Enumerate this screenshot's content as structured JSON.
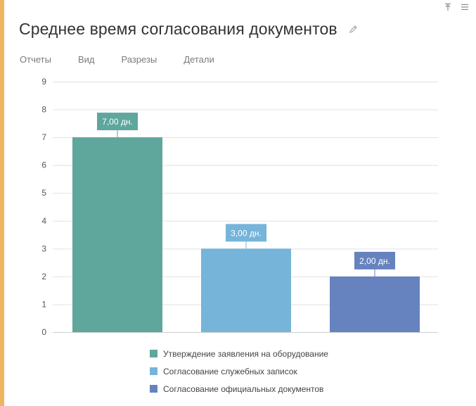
{
  "header": {
    "title": "Среднее время согласования документов",
    "pin_icon": "pin-icon",
    "menu_icon": "hamburger-menu-icon",
    "edit_icon": "pencil-icon"
  },
  "tabs": [
    {
      "label": "Отчеты"
    },
    {
      "label": "Вид"
    },
    {
      "label": "Разрезы"
    },
    {
      "label": "Детали"
    }
  ],
  "colors": {
    "accent": "#f0b460",
    "grid": "#e2e2e2",
    "axis_text": "#555555"
  },
  "chart_data": {
    "type": "bar",
    "title": "Среднее время согласования документов",
    "xlabel": "",
    "ylabel": "",
    "ylim": [
      0,
      9
    ],
    "yticks": [
      "0",
      "1",
      "2",
      "3",
      "4",
      "5",
      "6",
      "7",
      "8",
      "9"
    ],
    "grid": true,
    "legend_position": "bottom",
    "series": [
      {
        "name": "Утверждение заявления на оборудование",
        "value": 7,
        "label": "7,00 дн.",
        "color": "#5fa69d"
      },
      {
        "name": "Согласование служебных записок",
        "value": 3,
        "label": "3,00 дн.",
        "color": "#76b4da"
      },
      {
        "name": "Согласование официальных документов",
        "value": 2,
        "label": "2,00 дн.",
        "color": "#6683bf"
      }
    ]
  }
}
